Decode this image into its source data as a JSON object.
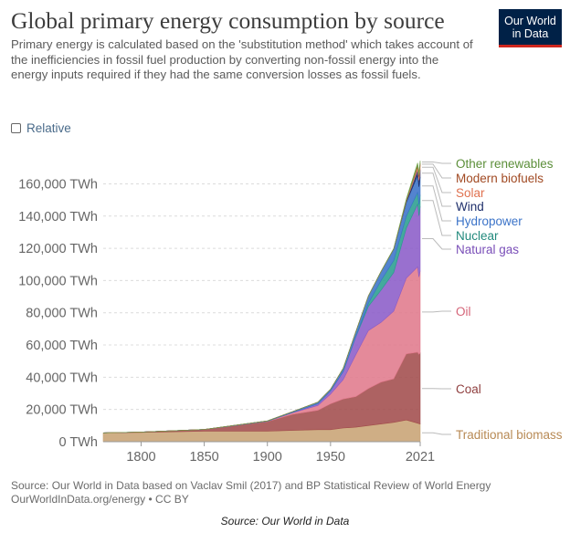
{
  "header": {
    "title": "Global primary energy consumption by source",
    "subtitle": "Primary energy is calculated based on the 'substitution method' which takes account of the inefficiencies in fossil fuel production by converting non-fossil energy into the energy inputs required if they had the same conversion losses as fossil fuels.",
    "logo_line1": "Our World",
    "logo_line2": "in Data",
    "relative_label": "Relative"
  },
  "footer": {
    "source_line1": "Source: Our World in Data based on Vaclav Smil (2017) and BP Statistical Review of World Energy",
    "source_line2": "OurWorldInData.org/energy • CC BY",
    "caption": "Source: Our World in Data"
  },
  "chart_data": {
    "type": "area",
    "stacked": true,
    "title": "Global primary energy consumption by source",
    "ylabel": "",
    "xlabel": "",
    "unit": "TWh",
    "xlim": [
      1770,
      2021
    ],
    "ylim": [
      0,
      175000
    ],
    "x_ticks": [
      1800,
      1850,
      1900,
      1950,
      2021
    ],
    "y_ticks": [
      0,
      20000,
      40000,
      60000,
      80000,
      100000,
      120000,
      140000,
      160000
    ],
    "y_tick_labels": [
      "0 TWh",
      "20,000 TWh",
      "40,000 TWh",
      "60,000 TWh",
      "80,000 TWh",
      "100,000 TWh",
      "120,000 TWh",
      "140,000 TWh",
      "160,000 TWh"
    ],
    "x": [
      1770,
      1800,
      1850,
      1900,
      1920,
      1940,
      1950,
      1960,
      1970,
      1980,
      1990,
      2000,
      2010,
      2019,
      2020,
      2021
    ],
    "series": [
      {
        "name": "Traditional biomass",
        "color": "#c8a374",
        "values": [
          5500,
          5800,
          6500,
          6500,
          7000,
          7500,
          7500,
          8500,
          9000,
          10000,
          11000,
          12000,
          13500,
          11500,
          11200,
          11000
        ]
      },
      {
        "name": "Coal",
        "color": "#a24c4c",
        "values": [
          0,
          200,
          1100,
          6000,
          10000,
          12000,
          16000,
          18000,
          19000,
          23000,
          26000,
          27000,
          41000,
          44000,
          43000,
          44000
        ]
      },
      {
        "name": "Oil",
        "color": "#e07a8c",
        "values": [
          0,
          0,
          0,
          200,
          1000,
          3000,
          6000,
          12000,
          26000,
          36000,
          37000,
          42000,
          47000,
          53000,
          48000,
          51000
        ]
      },
      {
        "name": "Natural gas",
        "color": "#8b5cc8",
        "values": [
          0,
          0,
          0,
          0,
          200,
          1000,
          2000,
          5000,
          11000,
          15000,
          20000,
          24000,
          31000,
          39000,
          38000,
          40000
        ]
      },
      {
        "name": "Nuclear",
        "color": "#2a9d8f",
        "values": [
          0,
          0,
          0,
          0,
          0,
          0,
          0,
          0,
          200,
          2000,
          6000,
          7500,
          7500,
          7300,
          7000,
          7200
        ]
      },
      {
        "name": "Hydropower",
        "color": "#3b73c8",
        "values": [
          0,
          0,
          0,
          200,
          500,
          1000,
          1000,
          2000,
          3000,
          4500,
          5500,
          7000,
          8500,
          10500,
          11000,
          11000
        ]
      },
      {
        "name": "Wind",
        "color": "#1f2f6b",
        "values": [
          0,
          0,
          0,
          0,
          0,
          0,
          0,
          0,
          0,
          0,
          10,
          100,
          800,
          3500,
          4000,
          4800
        ]
      },
      {
        "name": "Solar",
        "color": "#f08a6e",
        "values": [
          0,
          0,
          0,
          0,
          0,
          0,
          0,
          0,
          0,
          0,
          0,
          10,
          100,
          1800,
          2200,
          2700
        ]
      },
      {
        "name": "Modern biofuels",
        "color": "#b5562b",
        "values": [
          0,
          0,
          0,
          0,
          0,
          0,
          0,
          0,
          0,
          0,
          50,
          100,
          500,
          900,
          1000,
          1100
        ]
      },
      {
        "name": "Other renewables",
        "color": "#6fa04a",
        "values": [
          0,
          0,
          0,
          0,
          0,
          0,
          0,
          0,
          0,
          0,
          100,
          200,
          800,
          1500,
          1600,
          1600
        ]
      }
    ],
    "legend_position": "right, labels aligned to series"
  }
}
